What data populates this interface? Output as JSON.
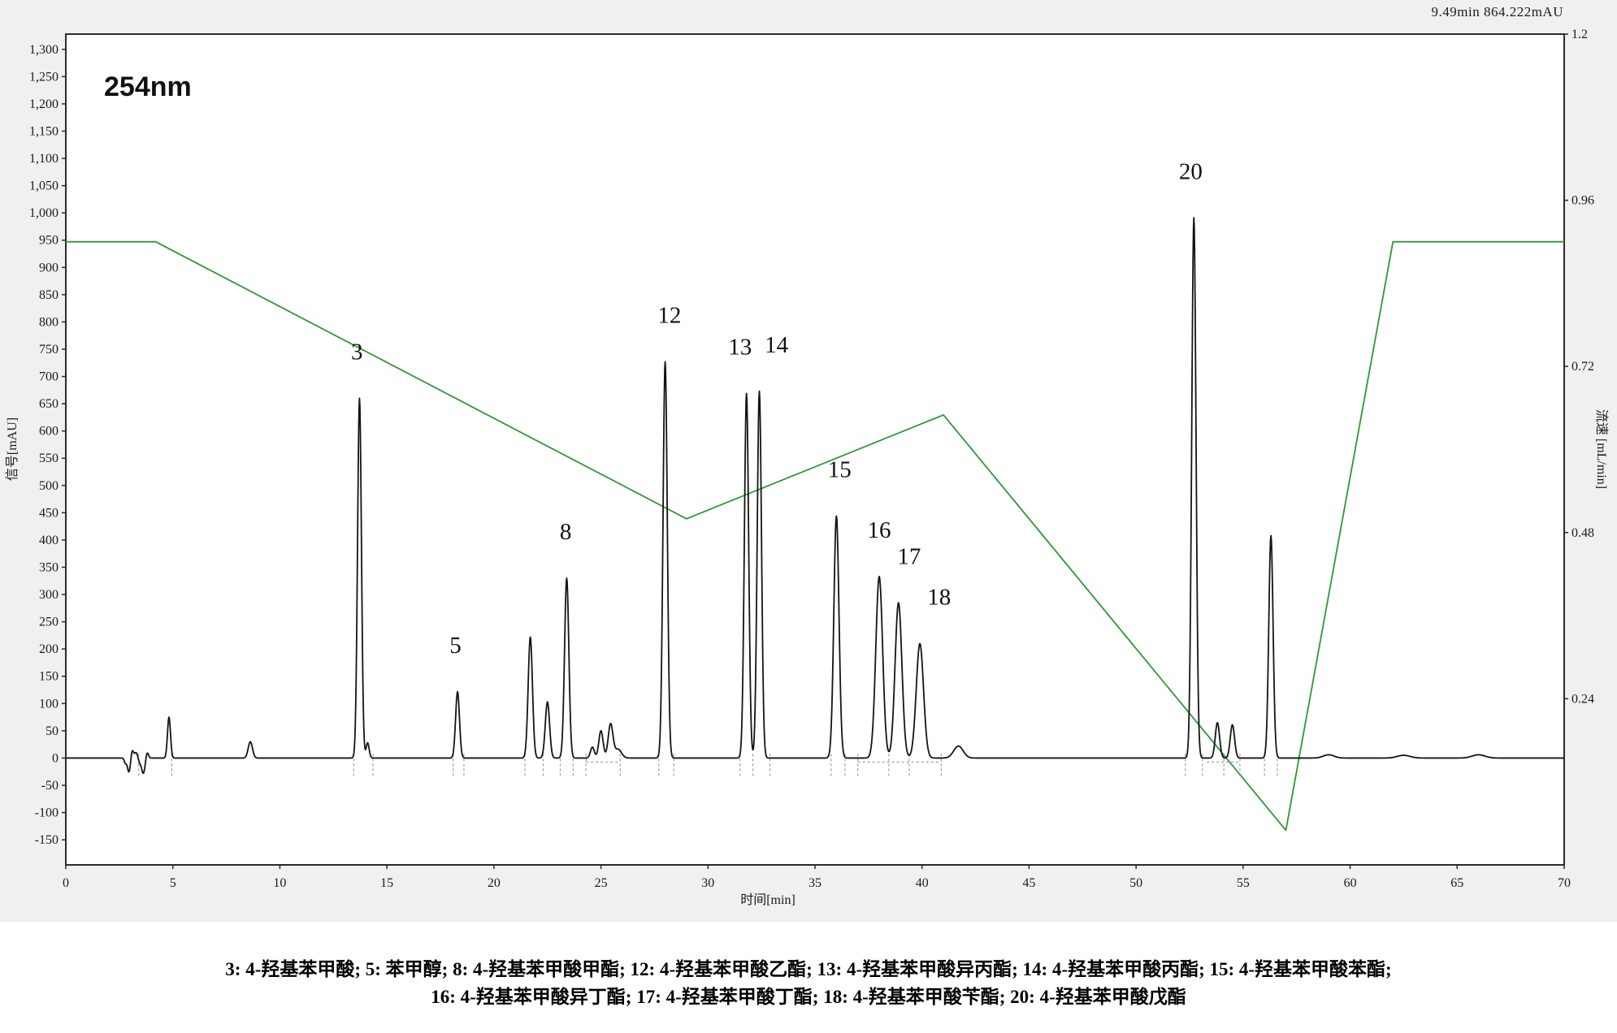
{
  "status": {
    "cursor_readout": "9.49min 864.222mAU"
  },
  "chart": {
    "wavelength_label": "254nm"
  },
  "caption": {
    "line1": "3: 4-羟基苯甲酸; 5: 苯甲醇; 8: 4-羟基苯甲酸甲酯; 12: 4-羟基苯甲酸乙酯; 13: 4-羟基苯甲酸异丙酯; 14: 4-羟基苯甲酸丙酯; 15: 4-羟基苯甲酸苯酯;",
    "line2": "16: 4-羟基苯甲酸异丁酯; 17: 4-羟基苯甲酸丁酯; 18: 4-羟基苯甲酸苄酯; 20: 4-羟基苯甲酸戊酯"
  },
  "chart_data": {
    "type": "line",
    "title": "254nm",
    "x_axis": {
      "label": "时间[min]",
      "min": 0,
      "max": 70,
      "tick_step": 5
    },
    "y_left_axis": {
      "label": "信号[mAU]",
      "axis_min": -196,
      "axis_max": 1328,
      "tick_start": -150,
      "tick_end": 1300,
      "tick_step": 50
    },
    "y_right_axis": {
      "label": "流速 [mL/min]",
      "axis_min": 0,
      "axis_max": 1.2,
      "ticks": [
        1.2,
        0.96,
        0.72,
        0.48,
        0.24
      ]
    },
    "colors": {
      "signal": "#141414",
      "flow": "#2e9734",
      "panel_bg": "#f1f0ee",
      "plot_bg": "#ffffff",
      "axis": "#2b2b2b",
      "marker": "#9b9b9b"
    },
    "signal_series": {
      "name": "UV signal 254nm (mAU)",
      "peaks_t_h_sigma": [
        [
          2.78,
          -9,
          0.05
        ],
        [
          2.95,
          -26,
          0.07
        ],
        [
          3.1,
          15,
          0.06
        ],
        [
          3.28,
          10,
          0.07
        ],
        [
          3.45,
          -7,
          0.06
        ],
        [
          3.62,
          -28,
          0.08
        ],
        [
          3.8,
          11,
          0.06
        ],
        [
          4.82,
          75,
          0.07
        ],
        [
          8.62,
          30,
          0.1
        ],
        [
          13.72,
          660,
          0.09
        ],
        [
          14.1,
          28,
          0.07
        ],
        [
          18.3,
          122,
          0.09
        ],
        [
          21.7,
          222,
          0.1
        ],
        [
          22.5,
          103,
          0.1
        ],
        [
          23.4,
          330,
          0.1
        ],
        [
          24.6,
          20,
          0.09
        ],
        [
          25.0,
          50,
          0.1
        ],
        [
          25.45,
          62,
          0.11
        ],
        [
          25.8,
          16,
          0.16
        ],
        [
          28.0,
          727,
          0.1
        ],
        [
          31.8,
          669,
          0.1
        ],
        [
          32.4,
          673,
          0.1
        ],
        [
          36.0,
          444,
          0.12
        ],
        [
          38.0,
          333,
          0.16
        ],
        [
          38.9,
          285,
          0.16
        ],
        [
          39.9,
          210,
          0.17
        ],
        [
          41.7,
          22,
          0.22
        ],
        [
          52.7,
          991,
          0.1
        ],
        [
          53.8,
          65,
          0.1
        ],
        [
          54.5,
          61,
          0.1
        ],
        [
          56.3,
          408,
          0.1
        ],
        [
          59.0,
          6,
          0.25
        ],
        [
          62.5,
          5,
          0.3
        ],
        [
          66.0,
          6,
          0.3
        ]
      ]
    },
    "flow_series": {
      "name": "流速 (mL/min)",
      "points_t_v": [
        [
          0,
          0.9
        ],
        [
          4.2,
          0.9
        ],
        [
          29,
          0.5
        ],
        [
          41,
          0.65
        ],
        [
          57,
          0.05
        ],
        [
          62,
          0.9
        ],
        [
          70,
          0.9
        ]
      ]
    },
    "peak_labels": [
      {
        "num": "3",
        "t": 13.6,
        "v": 746
      },
      {
        "num": "5",
        "t": 18.2,
        "v": 208
      },
      {
        "num": "8",
        "t": 23.35,
        "v": 416
      },
      {
        "num": "12",
        "t": 28.2,
        "v": 813
      },
      {
        "num": "13",
        "t": 31.5,
        "v": 755
      },
      {
        "num": "14",
        "t": 33.2,
        "v": 759
      },
      {
        "num": "15",
        "t": 36.15,
        "v": 530
      },
      {
        "num": "16",
        "t": 38.0,
        "v": 419
      },
      {
        "num": "17",
        "t": 39.4,
        "v": 371
      },
      {
        "num": "18",
        "t": 40.8,
        "v": 296
      },
      {
        "num": "20",
        "t": 52.55,
        "v": 1077
      }
    ],
    "integration_markers_t": [
      3.4,
      4.95,
      13.45,
      14.35,
      18.1,
      18.6,
      21.45,
      22.3,
      23.1,
      23.7,
      24.3,
      25.9,
      27.7,
      28.4,
      31.5,
      32.1,
      32.9,
      35.75,
      36.4,
      37.0,
      38.45,
      39.4,
      40.9,
      52.3,
      53.1,
      54.1,
      54.85,
      56.0,
      56.6
    ],
    "integration_baselines_t": [
      [
        24.3,
        25.9
      ],
      [
        37.0,
        40.9
      ],
      [
        53.3,
        54.9
      ]
    ]
  }
}
